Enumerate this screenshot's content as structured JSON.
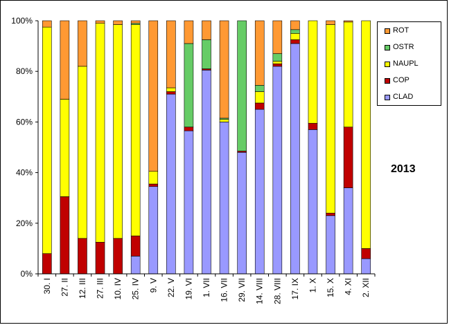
{
  "chart_data": {
    "type": "bar",
    "stacked": true,
    "percent": true,
    "title": "",
    "xlabel": "",
    "ylabel": "",
    "ylim": [
      0,
      100
    ],
    "yticks": [
      "0%",
      "20%",
      "40%",
      "60%",
      "80%",
      "100%"
    ],
    "grid": false,
    "legend_position": "right",
    "annotation": "2013",
    "categories": [
      "30. I",
      "27. II",
      "12. III",
      "27. III",
      "10. IV",
      "25. IV",
      "9. V",
      "22. V",
      "19. VI",
      "1. VII",
      "16. VII",
      "29. VII",
      "14. VIII",
      "28. VIII",
      "17. IX",
      "1. X",
      "15. X",
      "4. XI",
      "2. XII"
    ],
    "series": [
      {
        "name": "CLAD",
        "color": "#9999FF",
        "values": [
          0,
          0,
          0,
          0,
          0,
          7,
          34.5,
          71,
          56.5,
          80.5,
          60,
          48,
          65,
          82,
          91,
          57,
          23,
          34,
          6
        ]
      },
      {
        "name": "COP",
        "color": "#C00000",
        "values": [
          8,
          30.5,
          14,
          12.5,
          14,
          8,
          1,
          1,
          1.5,
          0.5,
          0,
          0.5,
          2.5,
          1,
          1.5,
          2.5,
          1,
          24,
          4
        ]
      },
      {
        "name": "NAUPL",
        "color": "#FFFF00",
        "values": [
          89.5,
          38.5,
          68,
          86.5,
          84.5,
          83.5,
          5,
          1.5,
          0,
          0,
          1,
          0,
          4.5,
          1,
          2.5,
          40.5,
          74.5,
          41.5,
          90
        ]
      },
      {
        "name": "OSTR",
        "color": "#66CC66",
        "values": [
          0,
          0,
          0,
          0,
          0,
          0.5,
          0,
          0,
          33,
          11.5,
          0.5,
          51.5,
          2.5,
          3,
          1.5,
          0,
          0,
          0,
          0
        ]
      },
      {
        "name": "ROT",
        "color": "#FF9933",
        "values": [
          2.5,
          31,
          18,
          1,
          1.5,
          1,
          59.5,
          26.5,
          9,
          7.5,
          38.5,
          0,
          25.5,
          13,
          3.5,
          0,
          1.5,
          0.5,
          0
        ]
      }
    ]
  }
}
